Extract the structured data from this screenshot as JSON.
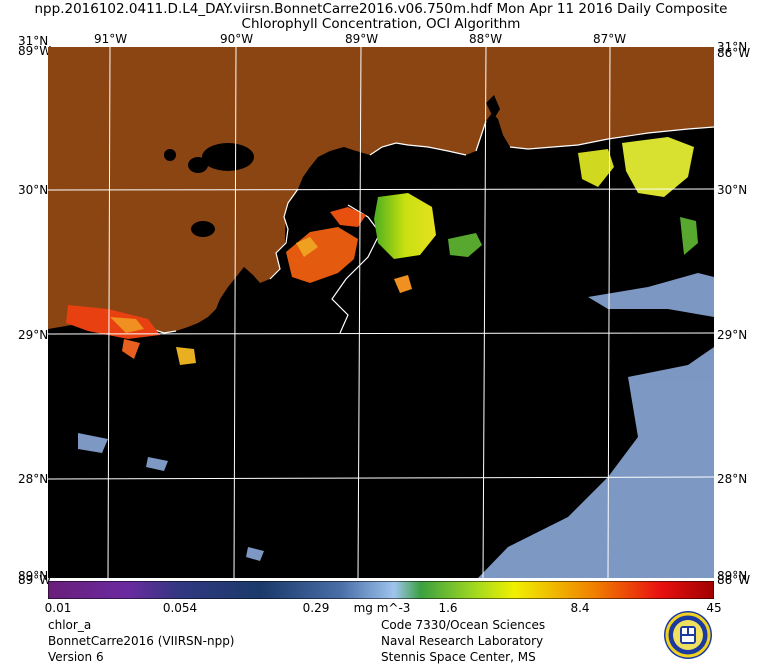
{
  "header": {
    "line1": "npp.2016102.0411.D.L4_DAY.viirsn.BonnetCarre2016.v06.750m.hdf    Mon Apr 11 2016 Daily Composite",
    "line2": "Chlorophyll Concentration, OCI Algorithm"
  },
  "axes": {
    "lon_labels": [
      "91°W",
      "90°W",
      "89°W",
      "88°W",
      "87°W"
    ],
    "lat_labels": [
      "30°N",
      "29°N",
      "28°N"
    ],
    "corner": {
      "top_left": "31°N",
      "top_right": "31°N",
      "left_top": "89°W",
      "right_top": "86°W",
      "left_bottom": "89°W",
      "right_bottom": "86°W",
      "bottom_left": "89°N",
      "bottom_right": "89°N"
    }
  },
  "colorbar": {
    "ticks": [
      "0.01",
      "0.054",
      "0.29",
      "1.6",
      "8.4",
      "45"
    ],
    "unit": "mg m^-3"
  },
  "footer": {
    "left": [
      "chlor_a",
      "BonnetCarre2016 (VIIRSN-npp)",
      "Version 6"
    ],
    "right": [
      "Code 7330/Ocean Sciences",
      "Naval Research Laboratory",
      "Stennis Space Center, MS"
    ]
  },
  "colors": {
    "land": "#8b4513",
    "water": "#000000",
    "grid": "#ffffff"
  },
  "icons": {
    "logo": "nrl-seal-icon"
  }
}
